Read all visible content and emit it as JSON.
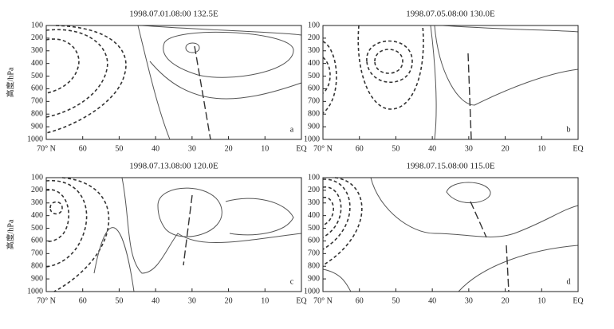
{
  "chart_data": [
    {
      "type": "contour",
      "title": "1998.07.01.08:00 132.5E",
      "panel_label": "a",
      "y_label": "高度/hPa",
      "xlim": [
        70,
        0
      ],
      "ylim": [
        100,
        1000
      ],
      "y_inverted": true,
      "xticks": [
        {
          "value": 70,
          "label": "70° N"
        },
        60,
        50,
        40,
        30,
        20,
        10,
        {
          "value": 0,
          "label": "EQ"
        }
      ],
      "yticks": [
        100,
        200,
        300,
        400,
        500,
        600,
        700,
        800,
        900,
        1000
      ]
    },
    {
      "type": "contour",
      "title": "1998.07.05.08:00 130.0E",
      "panel_label": "b",
      "xlim": [
        70,
        0
      ],
      "ylim": [
        100,
        1000
      ],
      "y_inverted": true,
      "xticks": [
        {
          "value": 70,
          "label": "70° N"
        },
        60,
        50,
        40,
        30,
        20,
        10,
        {
          "value": 0,
          "label": "EQ"
        }
      ],
      "yticks": [
        100,
        200,
        300,
        400,
        500,
        600,
        700,
        800,
        900,
        1000
      ]
    },
    {
      "type": "contour",
      "title": "1998.07.13.08:00 120.0E",
      "panel_label": "c",
      "y_label": "高度/hPa",
      "xlim": [
        70,
        0
      ],
      "ylim": [
        100,
        1000
      ],
      "y_inverted": true,
      "xticks": [
        {
          "value": 70,
          "label": "70° N"
        },
        60,
        50,
        40,
        30,
        20,
        10,
        {
          "value": 0,
          "label": "EQ"
        }
      ],
      "yticks": [
        100,
        200,
        300,
        400,
        500,
        600,
        700,
        800,
        900,
        1000
      ]
    },
    {
      "type": "contour",
      "title": "1998.07.15.08:00 115.0E",
      "panel_label": "d",
      "xlim": [
        70,
        0
      ],
      "ylim": [
        100,
        1000
      ],
      "y_inverted": true,
      "xticks": [
        {
          "value": 70,
          "label": "70° N"
        },
        60,
        50,
        40,
        30,
        20,
        10,
        {
          "value": 0,
          "label": "EQ"
        }
      ],
      "yticks": [
        100,
        200,
        300,
        400,
        500,
        600,
        700,
        800,
        900,
        1000
      ]
    }
  ]
}
